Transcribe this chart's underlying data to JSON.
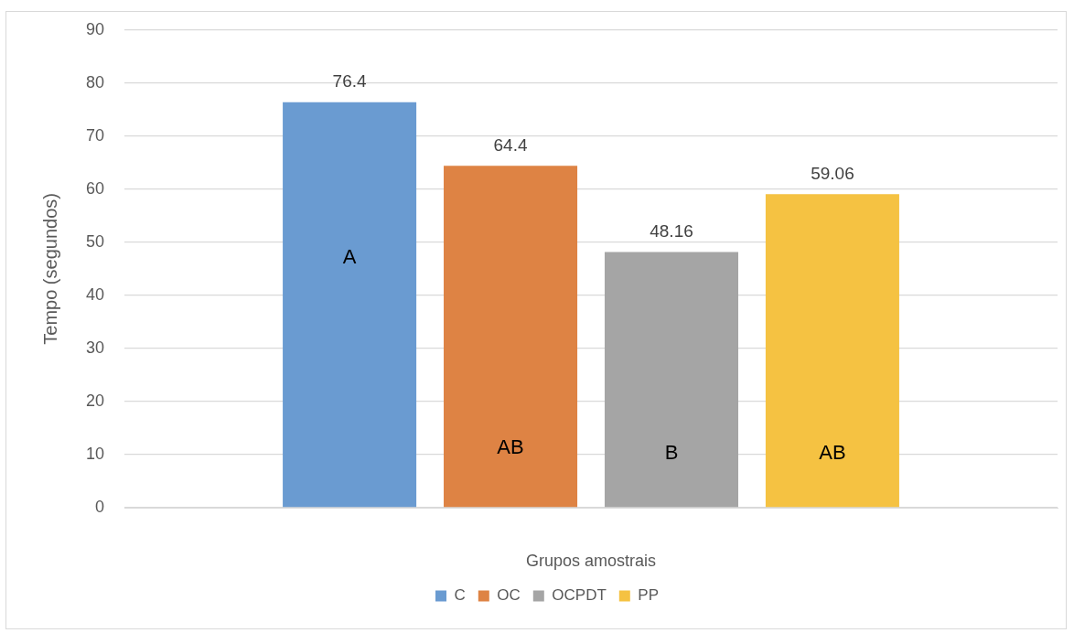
{
  "chart_data": {
    "type": "bar",
    "xlabel": "Grupos amostrais",
    "ylabel": "Tempo (segundos)",
    "categories": [
      null
    ],
    "series": [
      {
        "name": "C",
        "color": "#6a9bd1",
        "values": [
          76.4
        ]
      },
      {
        "name": "OC",
        "color": "#de8344",
        "values": [
          64.4
        ]
      },
      {
        "name": "OCPDT",
        "color": "#a5a5a5",
        "values": [
          48.16
        ]
      },
      {
        "name": "PP",
        "color": "#f5c242",
        "values": [
          59.06
        ]
      }
    ],
    "ylim": [
      0,
      90
    ],
    "yticks": [
      0,
      10,
      20,
      30,
      40,
      50,
      60,
      70,
      80,
      90
    ],
    "grid": "y",
    "legend": "bottom",
    "data_labels": true,
    "annotations": [
      "A",
      "AB",
      "B",
      "AB"
    ]
  }
}
